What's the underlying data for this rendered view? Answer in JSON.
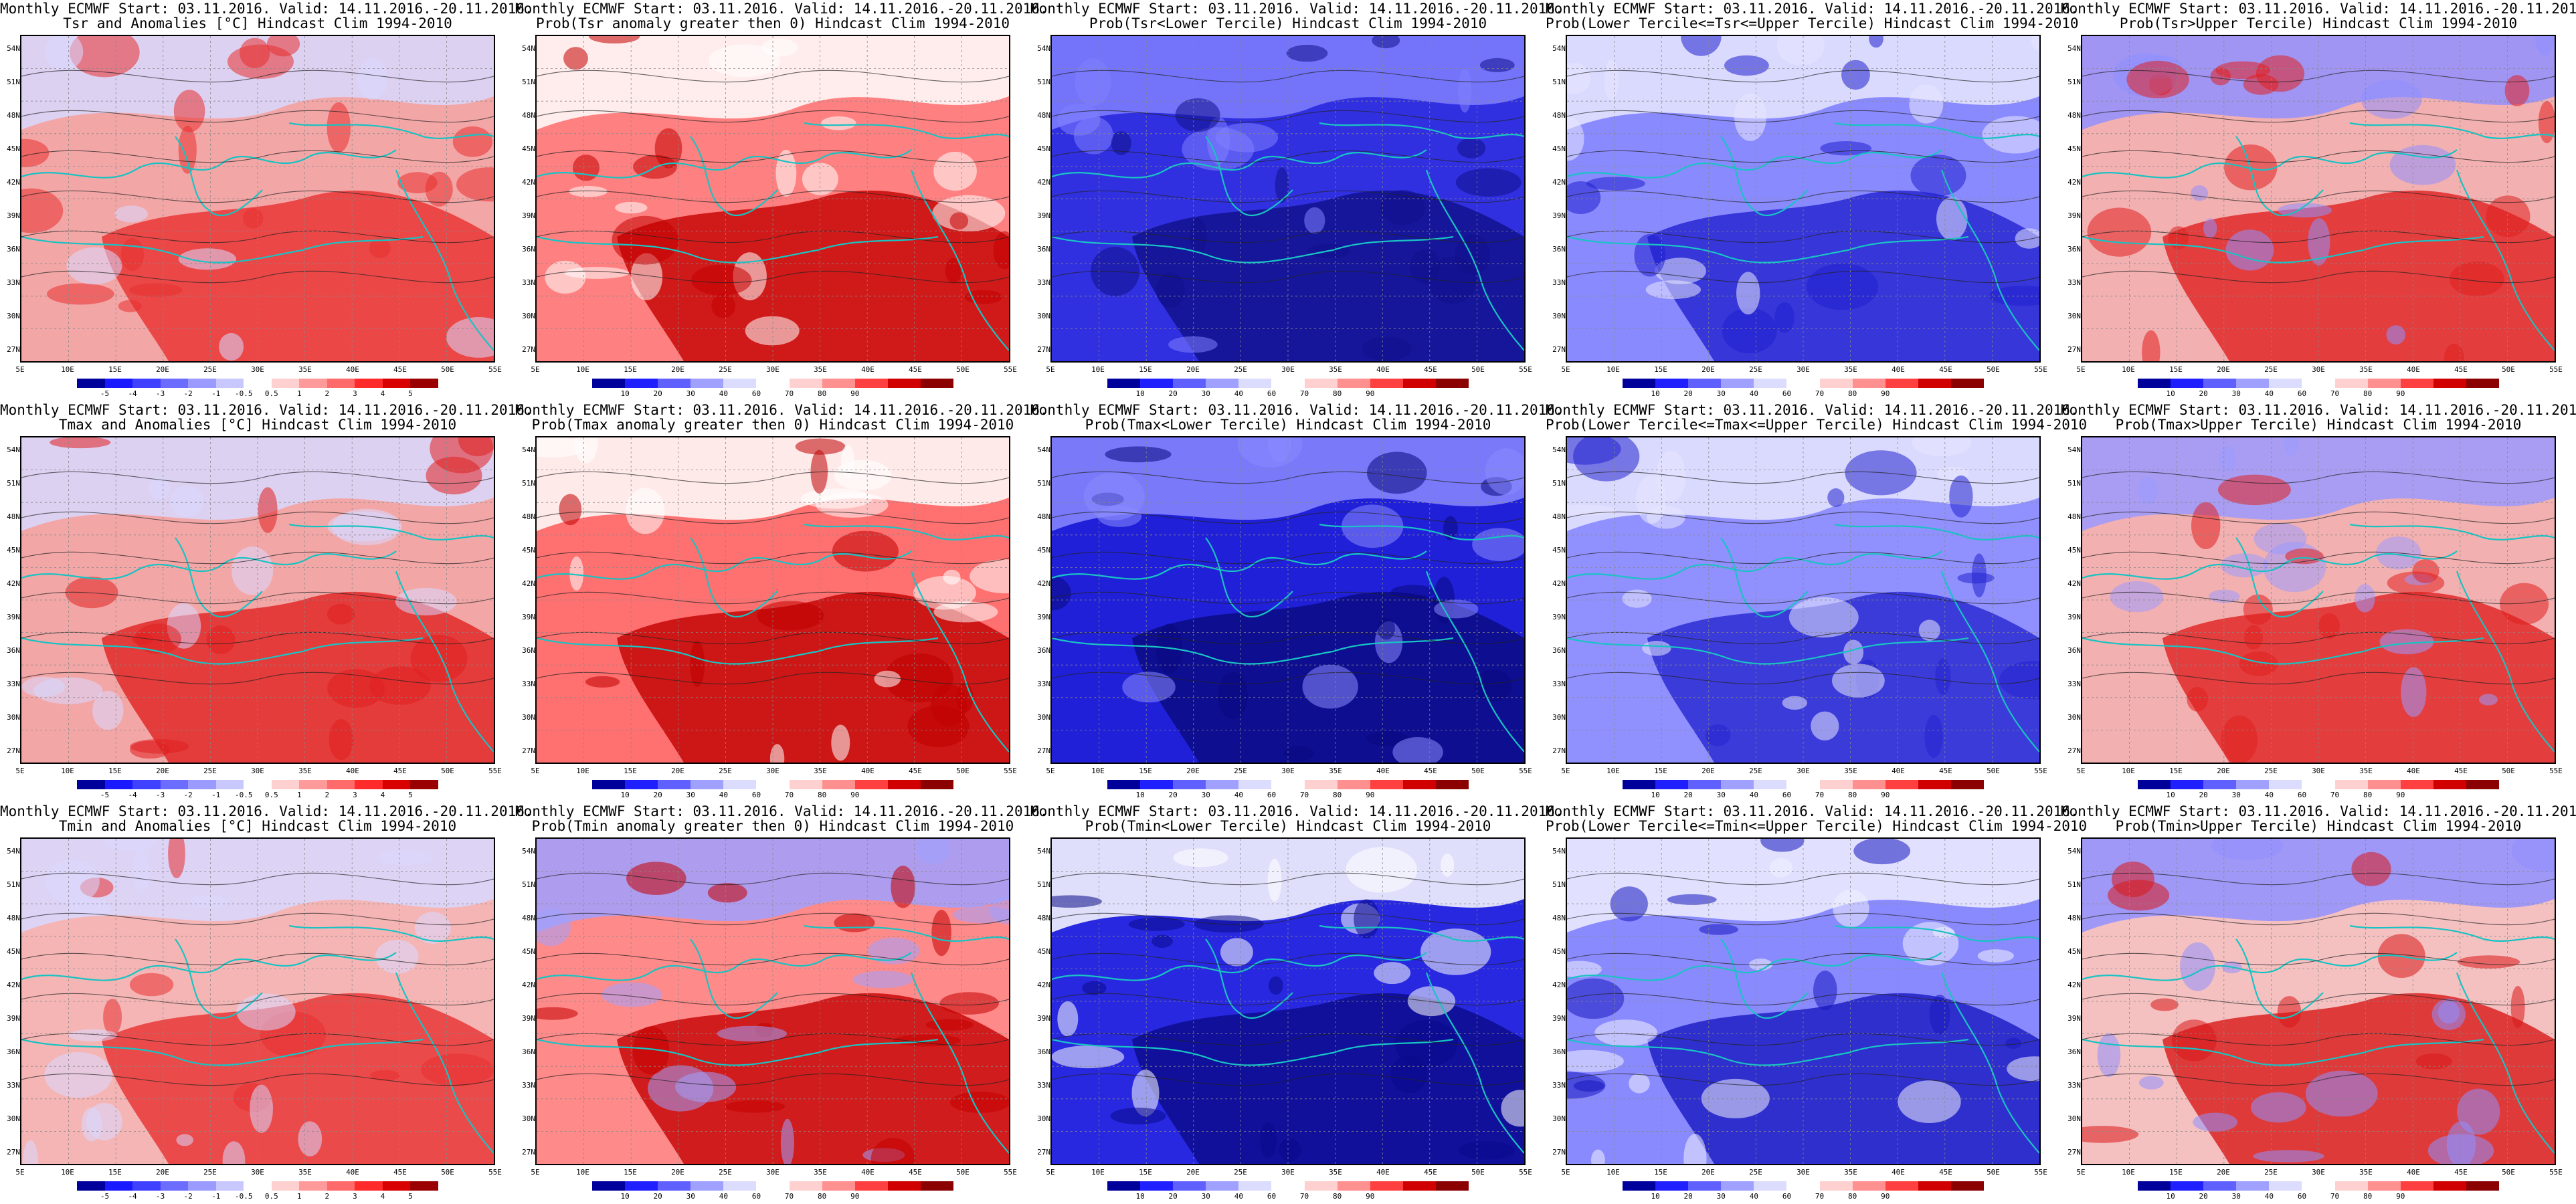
{
  "header_line": "Monthly ECMWF Start: 03.11.2016. Valid: 14.11.2016.-20.11.2016.",
  "lat_labels": [
    "54N",
    "51N",
    "48N",
    "45N",
    "42N",
    "39N",
    "36N",
    "33N",
    "30N",
    "27N"
  ],
  "lon_labels": [
    "5E",
    "10E",
    "15E",
    "20E",
    "25E",
    "30E",
    "35E",
    "40E",
    "45E",
    "50E",
    "55E"
  ],
  "colorbars": {
    "anomaly": {
      "labels": [
        "-5",
        "-4",
        "-3",
        "-2",
        "-1",
        "-0.5",
        "0.5",
        "1",
        "2",
        "3",
        "4",
        "5"
      ],
      "colors": [
        "#00009b",
        "#1a1aff",
        "#4040ff",
        "#6c6cff",
        "#9a9aff",
        "#c8c8ff",
        "#ffffff",
        "#ffd0d0",
        "#ff9a9a",
        "#ff6a6a",
        "#ff2a2a",
        "#d90000",
        "#9b0000"
      ]
    },
    "probability": {
      "labels": [
        "10",
        "20",
        "30",
        "40",
        "60",
        "70",
        "80",
        "90"
      ],
      "colors": [
        "#00009b",
        "#2020ff",
        "#6060ff",
        "#a0a0ff",
        "#dcdcff",
        "#ffffff",
        "#ffd0d0",
        "#ff9090",
        "#ff4040",
        "#d00000",
        "#8b0000"
      ]
    }
  },
  "panels": [
    {
      "subtitle": "Tsr and Anomalies [°C] Hindcast Clim 1994-2010",
      "bar": "anomaly",
      "fill": "#f3a6a6",
      "hot": "#e83030",
      "cool": "#d8d8ff"
    },
    {
      "subtitle": "Prob(Tsr anomaly greater then 0) Hindcast Clim 1994-2010",
      "bar": "probability",
      "fill": "#ff8080",
      "hot": "#c40000",
      "cool": "#ffffff"
    },
    {
      "subtitle": "Prob(Tsr<Lower Tercile) Hindcast Clim 1994-2010",
      "bar": "probability",
      "fill": "#3030e0",
      "hot": "#10108a",
      "cool": "#8080ff"
    },
    {
      "subtitle": "Prob(Lower Tercile<=Tsr<=Upper Tercile) Hindcast Clim 1994-2010",
      "bar": "probability",
      "fill": "#8a8aff",
      "hot": "#2020d0",
      "cool": "#e8e8ff"
    },
    {
      "subtitle": "Prob(Tsr>Upper Tercile) Hindcast Clim 1994-2010",
      "bar": "probability",
      "fill": "#f3b0b0",
      "hot": "#e02020",
      "cool": "#9090ff"
    },
    {
      "subtitle": "Tmax and Anomalies [°C] Hindcast Clim 1994-2010",
      "bar": "anomaly",
      "fill": "#f3a6a6",
      "hot": "#e02020",
      "cool": "#d8d8ff"
    },
    {
      "subtitle": "Prob(Tmax anomaly greater then 0) Hindcast Clim 1994-2010",
      "bar": "probability",
      "fill": "#ff7070",
      "hot": "#c00000",
      "cool": "#ffffff"
    },
    {
      "subtitle": "Prob(Tmax<Lower Tercile) Hindcast Clim 1994-2010",
      "bar": "probability",
      "fill": "#2020d8",
      "hot": "#0a0a80",
      "cool": "#8a8aff"
    },
    {
      "subtitle": "Prob(Lower Tercile<=Tmax<=Upper Tercile) Hindcast Clim 1994-2010",
      "bar": "probability",
      "fill": "#9090ff",
      "hot": "#2525d0",
      "cool": "#e8e8ff"
    },
    {
      "subtitle": "Prob(Tmax>Upper Tercile) Hindcast Clim 1994-2010",
      "bar": "probability",
      "fill": "#f3b0b0",
      "hot": "#e02020",
      "cool": "#9a9aff"
    },
    {
      "subtitle": "Tmin and Anomalies [°C] Hindcast Clim 1994-2010",
      "bar": "anomaly",
      "fill": "#f5b5b5",
      "hot": "#e83030",
      "cool": "#d8d8ff"
    },
    {
      "subtitle": "Prob(Tmin anomaly greater then 0) Hindcast Clim 1994-2010",
      "bar": "probability",
      "fill": "#ff8a8a",
      "hot": "#c40000",
      "cool": "#a0a0ff"
    },
    {
      "subtitle": "Prob(Tmin<Lower Tercile) Hindcast Clim 1994-2010",
      "bar": "probability",
      "fill": "#2828e0",
      "hot": "#0a0a8a",
      "cool": "#ffffff"
    },
    {
      "subtitle": "Prob(Lower Tercile<=Tmin<=Upper Tercile) Hindcast Clim 1994-2010",
      "bar": "probability",
      "fill": "#8a8aff",
      "hot": "#1818c0",
      "cool": "#f0f0ff"
    },
    {
      "subtitle": "Prob(Tmin>Upper Tercile) Hindcast Clim 1994-2010",
      "bar": "probability",
      "fill": "#f5c0c0",
      "hot": "#d81818",
      "cool": "#9090ff"
    }
  ]
}
